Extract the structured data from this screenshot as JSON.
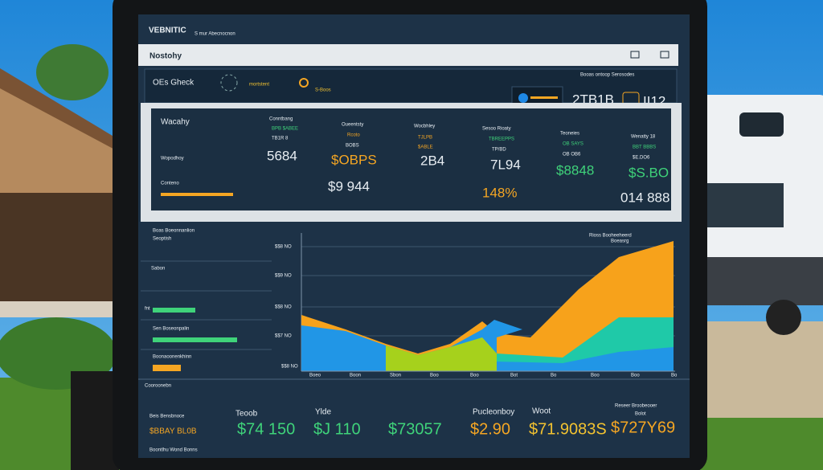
{
  "header": {
    "brand": "VEBNITIC",
    "subtitle": "S mur Abecnocnon",
    "page_title": "Nostohy"
  },
  "toolbar": {
    "search": "OEs Gheck",
    "filter": "mortstent",
    "status": "S-Boos",
    "links": "Booas ontoop  Serosodes",
    "storage": "2TB1B",
    "count": "II12"
  },
  "summary": {
    "labels": [
      "Wacahy",
      "Wopodhoy",
      "Conteno"
    ],
    "columns": [
      {
        "header": "Conntbang",
        "lines": [
          "BPB $ABEE",
          "TB1R 8"
        ],
        "value": "5684"
      },
      {
        "header": "Oueentsty",
        "lines": [
          "Rcoto",
          "BOBS"
        ],
        "value": "$OBPS",
        "extra": "$9 944"
      },
      {
        "header": "Wocbhley",
        "lines": [
          "TJLPB",
          "$ABLE"
        ],
        "value": "2B4"
      },
      {
        "header": "Sesoo Rioaty",
        "lines": [
          "TBREEPPS",
          "TP/BD"
        ],
        "value": "7L94",
        "extra": "148%"
      },
      {
        "header": "Teoneies",
        "lines": [
          "OB SAYS",
          "OB OB6"
        ],
        "value": "$8848"
      },
      {
        "header": "Wenatty 18",
        "lines": [
          "BBT BBBS",
          "$E.DO6"
        ],
        "value": "$S.BO",
        "extra": "014 888"
      }
    ]
  },
  "side_panel": {
    "title": "Boas Boeonnanlion",
    "subtitle": "Seoptish",
    "section": "Sabon",
    "bar_labels": [
      "fnt",
      "Sen Boseonpalin",
      "Boonaoonenkhinn"
    ]
  },
  "chart_panel": {
    "y_labels": [
      "$$8 NO",
      "$$9 NO",
      "$$8 NO",
      "$$7 NO",
      "$$8 NO"
    ],
    "legend": [
      "Rioss Booheeheerd",
      "Boeasrg"
    ],
    "x_labels": [
      "Boeo",
      "Boon",
      "Sbon",
      "Boo",
      "Boo",
      "Bot",
      "Bo",
      "Boo",
      "Boo",
      "Bo"
    ]
  },
  "footer": {
    "title": "Cooroonebn",
    "left": [
      "Beis Bensbnoce",
      "$BBAY BL0B",
      "Boontlhu Wond Bonns"
    ],
    "stats": [
      {
        "label": "Teoob",
        "value": "$74 150"
      },
      {
        "label": "Ylde",
        "value": "$J 110"
      },
      {
        "label": "",
        "value": "$73057"
      },
      {
        "label": "Pucleonboy",
        "value": "$2.90"
      },
      {
        "label": "Woot",
        "value": "$71.9083S"
      },
      {
        "label": "Reseer Broobeooer",
        "value": "$727Y69"
      }
    ],
    "stat_note": "Bolot"
  }
}
